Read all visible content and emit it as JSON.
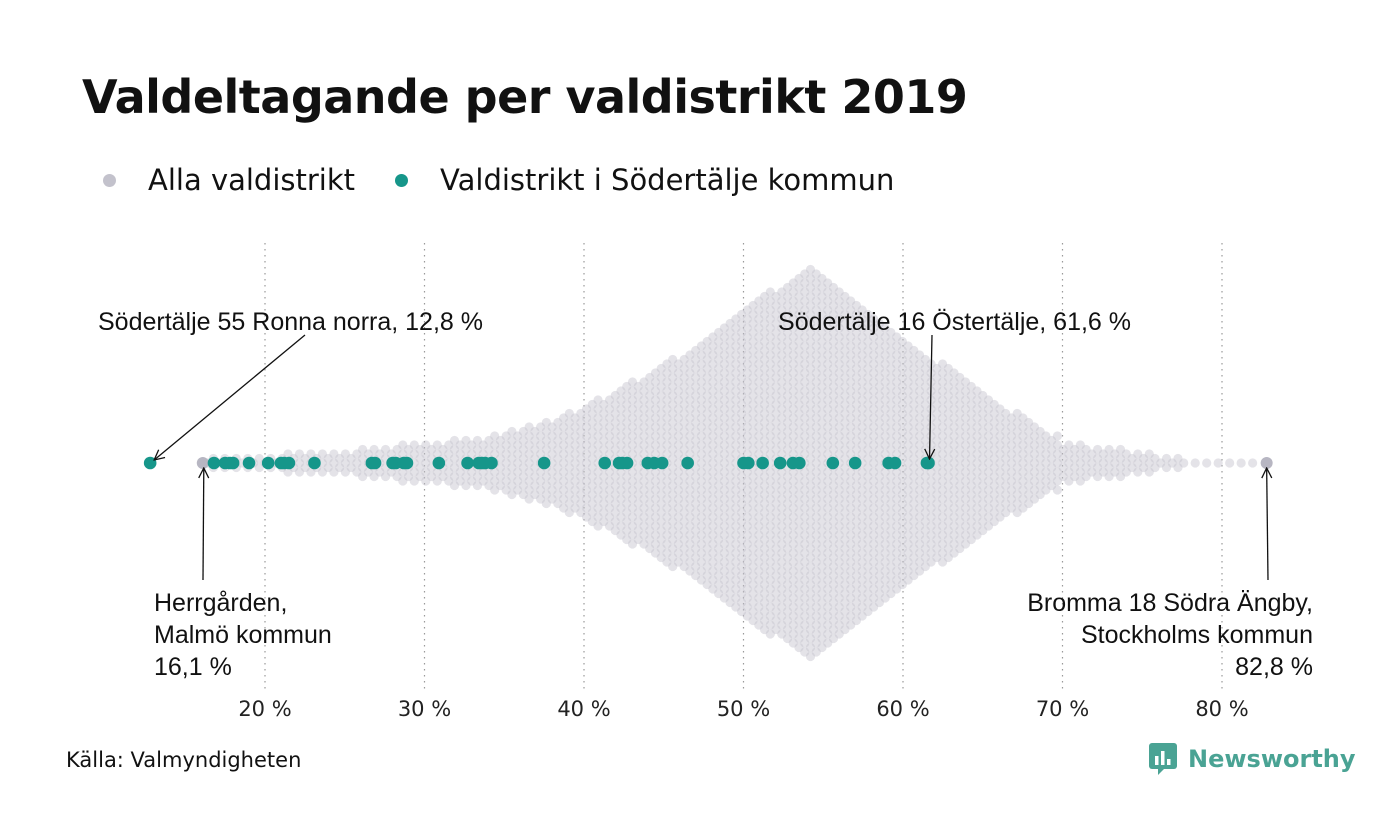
{
  "header": {
    "title": "Valdeltagande per valdistrikt 2019"
  },
  "legend": {
    "items": [
      {
        "label": "Alla valdistrikt",
        "color": "#c3c2cc"
      },
      {
        "label": "Valdistrikt i Södertälje kommun",
        "color": "#16968a"
      }
    ]
  },
  "chart_data": {
    "type": "scatter",
    "subtype": "beeswarm",
    "title": "Valdeltagande per valdistrikt 2019",
    "xlabel": "",
    "ylabel": "",
    "xlim": [
      12,
      85
    ],
    "x_ticks": [
      20,
      30,
      40,
      50,
      60,
      70,
      80
    ],
    "x_tick_labels": [
      "20 %",
      "30 %",
      "40 %",
      "50 %",
      "60 %",
      "70 %",
      "80 %"
    ],
    "grid": "vertical dotted",
    "legend_position": "top-left",
    "all_districts": {
      "name": "Alla valdistrikt",
      "color": "#c3c2cc",
      "min": 16.1,
      "max": 82.8,
      "peak": 54
    },
    "series": [
      {
        "name": "Valdistrikt i Södertälje kommun",
        "color": "#16968a",
        "values": [
          12.8,
          16.8,
          17.5,
          17.8,
          18.0,
          19.0,
          20.2,
          21.0,
          21.2,
          21.5,
          23.1,
          26.7,
          26.9,
          28.0,
          28.2,
          28.7,
          28.9,
          30.9,
          32.7,
          33.4,
          33.6,
          33.8,
          34.2,
          37.5,
          41.3,
          42.2,
          42.4,
          42.7,
          44.0,
          44.4,
          44.9,
          46.5,
          50.0,
          50.3,
          51.2,
          52.3,
          53.1,
          53.5,
          55.6,
          57.0,
          59.1,
          59.5,
          61.5,
          61.6
        ]
      }
    ],
    "annotations": [
      {
        "text": "Södertälje 55 Ronna norra, 12,8 %",
        "value": 12.8
      },
      {
        "text": "Södertälje 16 Östertälje, 61,6 %",
        "value": 61.6
      },
      {
        "lines": [
          "Herrgården,",
          "Malmö kommun",
          "16,1 %"
        ],
        "value": 16.1
      },
      {
        "lines": [
          "Bromma 18 Södra Ängby,",
          "Stockholms kommun",
          "82,8 %"
        ],
        "value": 82.8
      }
    ]
  },
  "footer": {
    "source": "Källa: Valmyndigheten",
    "brand": "Newsworthy",
    "brand_color": "#4aa394"
  }
}
